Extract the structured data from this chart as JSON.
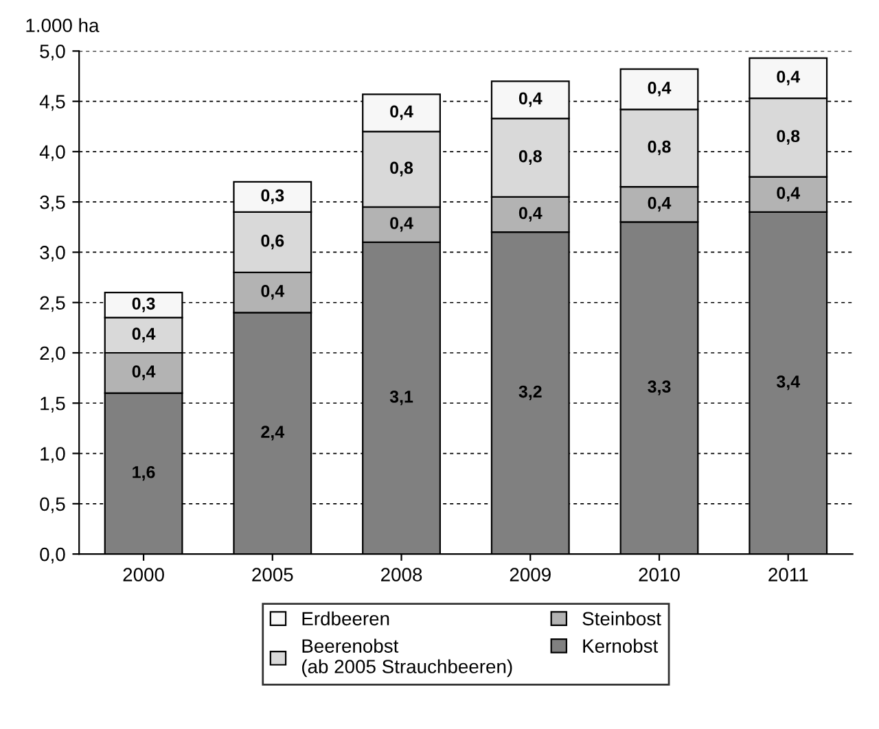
{
  "chart_data": {
    "type": "bar",
    "stacked": true,
    "ylabel": "1.000 ha",
    "categories": [
      "2000",
      "2005",
      "2008",
      "2009",
      "2010",
      "2011"
    ],
    "series": [
      {
        "name": "Kernobst",
        "color": "#808080",
        "values": [
          1.6,
          2.4,
          3.1,
          3.2,
          3.3,
          3.4
        ],
        "value_labels": [
          "1,6",
          "2,4",
          "3,1",
          "3,2",
          "3,3",
          "3,4"
        ]
      },
      {
        "name": "Steinbost",
        "color": "#b3b3b3",
        "values": [
          0.4,
          0.4,
          0.35,
          0.35,
          0.35,
          0.35
        ],
        "value_labels": [
          "0,4",
          "0,4",
          "0,4",
          "0,4",
          "0,4",
          "0,4"
        ]
      },
      {
        "name": "Beerenobst\n(ab 2005 Strauchbeeren)",
        "color": "#d9d9d9",
        "values": [
          0.35,
          0.6,
          0.75,
          0.78,
          0.77,
          0.78
        ],
        "value_labels": [
          "0,4",
          "0,6",
          "0,8",
          "0,8",
          "0,8",
          "0,8"
        ]
      },
      {
        "name": "Erdbeeren",
        "color": "#f7f7f7",
        "values": [
          0.25,
          0.3,
          0.37,
          0.37,
          0.4,
          0.4
        ],
        "value_labels": [
          "0,3",
          "0,3",
          "0,4",
          "0,4",
          "0,4",
          "0,4"
        ]
      }
    ],
    "ylim": [
      0,
      5
    ],
    "yticks": [
      {
        "value": 0,
        "label": "0,0"
      },
      {
        "value": 0.5,
        "label": "0,5"
      },
      {
        "value": 1,
        "label": "1,0"
      },
      {
        "value": 1.5,
        "label": "1,5"
      },
      {
        "value": 2,
        "label": "2,0"
      },
      {
        "value": 2.5,
        "label": "2,5"
      },
      {
        "value": 3,
        "label": "3,0"
      },
      {
        "value": 3.5,
        "label": "3,5"
      },
      {
        "value": 4,
        "label": "4,0"
      },
      {
        "value": 4.5,
        "label": "4,5"
      },
      {
        "value": 5,
        "label": "5,0"
      }
    ],
    "grid": "y",
    "legend": "bottom"
  }
}
